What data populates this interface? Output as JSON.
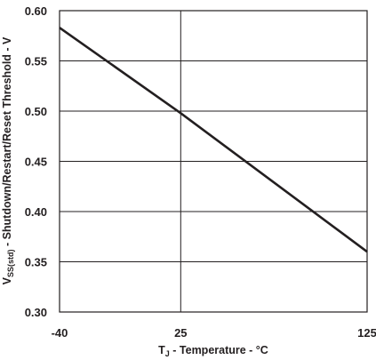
{
  "chart_data": {
    "type": "line",
    "xlabel": {
      "main": "T",
      "sub": "J",
      "rest": " - Temperature - °C"
    },
    "ylabel": {
      "main": "V",
      "sub": "SS(std)",
      "rest": " - Shutdown/Restart/Reset Threshold - V"
    },
    "xlim": [
      -40,
      125
    ],
    "ylim": [
      0.3,
      0.6
    ],
    "x_ticks": [
      {
        "value": -40,
        "label": "-40"
      },
      {
        "value": 25,
        "label": "25"
      },
      {
        "value": 125,
        "label": "125"
      }
    ],
    "y_ticks": [
      {
        "value": 0.3,
        "label": "0.30"
      },
      {
        "value": 0.35,
        "label": "0.35"
      },
      {
        "value": 0.4,
        "label": "0.40"
      },
      {
        "value": 0.45,
        "label": "0.45"
      },
      {
        "value": 0.5,
        "label": "0.50"
      },
      {
        "value": 0.55,
        "label": "0.55"
      },
      {
        "value": 0.6,
        "label": "0.60"
      }
    ],
    "grid": true,
    "series": [
      {
        "x": [
          -40,
          25,
          125
        ],
        "y": [
          0.583,
          0.498,
          0.36
        ]
      }
    ]
  }
}
